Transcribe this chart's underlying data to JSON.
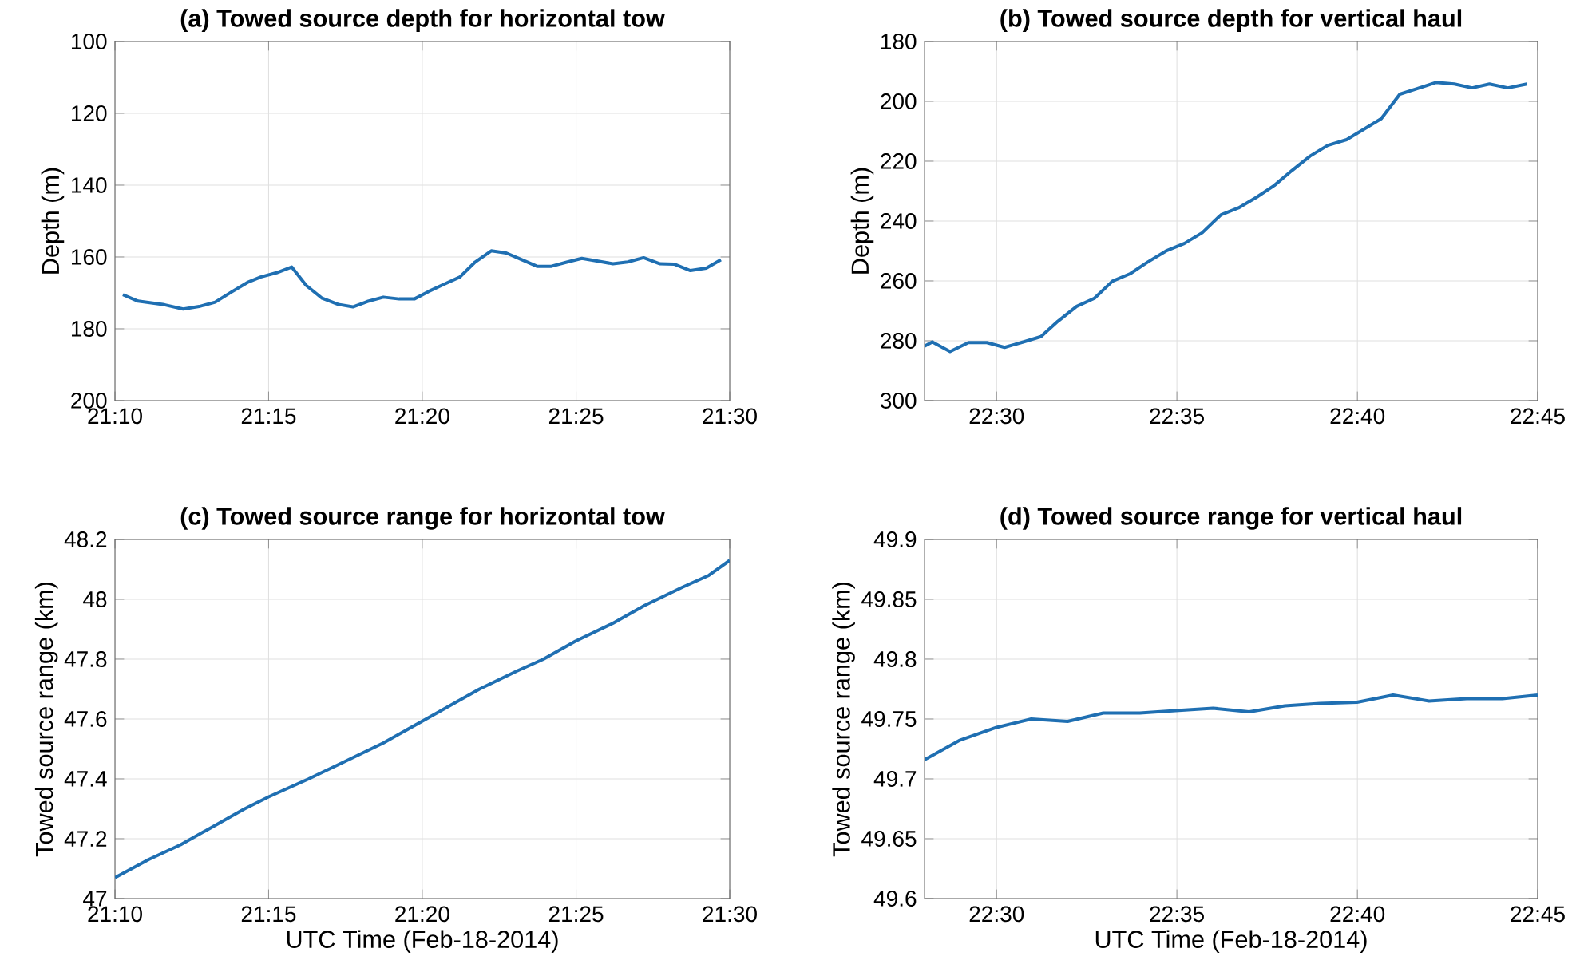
{
  "chart_data": [
    {
      "type": "line",
      "title": "(a) Towed source depth for horizontal tow",
      "ylabel": "Depth (m)",
      "grid": true,
      "x": [
        21.171,
        21.1792,
        21.1935,
        21.2037,
        21.2123,
        21.221,
        21.2297,
        21.2385,
        21.2457,
        21.2543,
        21.2625,
        21.2703,
        21.279,
        21.2877,
        21.2957,
        21.3035,
        21.3122,
        21.3208,
        21.329,
        21.3368,
        21.3455,
        21.3537,
        21.362,
        21.3707,
        21.3788,
        21.3875,
        21.3955,
        21.4033,
        21.412,
        21.4198,
        21.428,
        21.4367,
        21.4447,
        21.4533,
        21.4622,
        21.4698,
        21.4787,
        21.4873,
        21.4952
      ],
      "series": [
        {
          "color": "#1f6fb2",
          "values": [
            170.5,
            172.3,
            173.3,
            174.5,
            173.8,
            172.6,
            169.8,
            167.1,
            165.6,
            164.4,
            162.8,
            167.9,
            171.5,
            173.2,
            173.9,
            172.4,
            171.2,
            171.7,
            171.7,
            169.6,
            167.5,
            165.6,
            161.4,
            158.3,
            158.9,
            160.8,
            162.6,
            162.6,
            161.4,
            160.4,
            161.1,
            161.9,
            161.4,
            160.2,
            161.9,
            162.0,
            163.8,
            163.1,
            160.8
          ]
        }
      ],
      "xlim": [
        21.1667,
        21.5
      ],
      "ylim": [
        200,
        100
      ],
      "xticks": [
        {
          "value": 21.1667,
          "label": "21:10"
        },
        {
          "value": 21.25,
          "label": "21:15"
        },
        {
          "value": 21.3333,
          "label": "21:20"
        },
        {
          "value": 21.4167,
          "label": "21:25"
        },
        {
          "value": 21.5,
          "label": "21:30"
        }
      ],
      "yticks": [
        100,
        120,
        140,
        160,
        180,
        200
      ]
    },
    {
      "type": "line",
      "title": "(b) Towed source depth for vertical haul",
      "ylabel": "Depth (m)",
      "grid": true,
      "x": [
        22.4667,
        22.4703,
        22.4785,
        22.487,
        22.4955,
        22.5037,
        22.5123,
        22.5205,
        22.5283,
        22.537,
        22.5452,
        22.5535,
        22.5617,
        22.5698,
        22.5783,
        22.5867,
        22.595,
        22.6037,
        22.6118,
        22.6202,
        22.6283,
        22.6365,
        22.6448,
        22.653,
        22.6617,
        22.6695,
        22.6777,
        22.6863,
        22.6945,
        22.703,
        22.7115,
        22.7197,
        22.7277,
        22.7362,
        22.745
      ],
      "series": [
        {
          "color": "#1f6fb2",
          "values": [
            281.8,
            280.4,
            283.6,
            280.6,
            280.6,
            282.2,
            280.4,
            278.6,
            273.5,
            268.5,
            265.8,
            260.1,
            257.6,
            253.7,
            250.0,
            247.5,
            243.9,
            237.9,
            235.6,
            232.0,
            228.1,
            223.1,
            218.3,
            214.7,
            212.8,
            209.4,
            205.8,
            197.6,
            195.7,
            193.7,
            194.2,
            195.5,
            194.2,
            195.5,
            194.2
          ]
        }
      ],
      "xlim": [
        22.4667,
        22.75
      ],
      "ylim": [
        300,
        180
      ],
      "xticks": [
        {
          "value": 22.5,
          "label": "22:30"
        },
        {
          "value": 22.5833,
          "label": "22:35"
        },
        {
          "value": 22.6667,
          "label": "22:40"
        },
        {
          "value": 22.75,
          "label": "22:45"
        }
      ],
      "yticks": [
        180,
        200,
        220,
        240,
        260,
        280,
        300
      ]
    },
    {
      "type": "line",
      "title": "(c) Towed source range for horizontal tow",
      "xlabel": "UTC Time (Feb-18-2014)",
      "ylabel": "Towed source range (km)",
      "grid": true,
      "x": [
        21.1667,
        21.1848,
        21.2023,
        21.2197,
        21.237,
        21.25,
        21.2717,
        21.292,
        21.3122,
        21.3325,
        21.3527,
        21.3643,
        21.3845,
        21.399,
        21.4163,
        21.4367,
        21.454,
        21.4742,
        21.4887,
        21.5
      ],
      "series": [
        {
          "color": "#1f6fb2",
          "values": [
            47.07,
            47.13,
            47.18,
            47.24,
            47.3,
            47.34,
            47.4,
            47.46,
            47.52,
            47.59,
            47.66,
            47.7,
            47.76,
            47.8,
            47.86,
            47.92,
            47.98,
            48.04,
            48.08,
            48.13
          ]
        }
      ],
      "xlim": [
        21.1667,
        21.5
      ],
      "ylim": [
        47,
        48.2
      ],
      "xticks": [
        {
          "value": 21.1667,
          "label": "21:10"
        },
        {
          "value": 21.25,
          "label": "21:15"
        },
        {
          "value": 21.3333,
          "label": "21:20"
        },
        {
          "value": 21.4167,
          "label": "21:25"
        },
        {
          "value": 21.5,
          "label": "21:30"
        }
      ],
      "yticks": [
        47,
        47.2,
        47.4,
        47.6,
        47.8,
        48,
        48.2
      ]
    },
    {
      "type": "line",
      "title": "(d) Towed source range for vertical haul",
      "xlabel": "UTC Time (Feb-18-2014)",
      "ylabel": "Towed source range (km)",
      "grid": true,
      "x": [
        22.4667,
        22.4827,
        22.5,
        22.516,
        22.5328,
        22.5493,
        22.5662,
        22.5827,
        22.6,
        22.6167,
        22.6332,
        22.6493,
        22.6665,
        22.6832,
        22.6998,
        22.7172,
        22.7337,
        22.75
      ],
      "series": [
        {
          "color": "#1f6fb2",
          "values": [
            49.716,
            49.732,
            49.743,
            49.75,
            49.748,
            49.755,
            49.755,
            49.757,
            49.759,
            49.756,
            49.761,
            49.763,
            49.764,
            49.77,
            49.765,
            49.767,
            49.767,
            49.77
          ]
        }
      ],
      "xlim": [
        22.4667,
        22.75
      ],
      "ylim": [
        49.6,
        49.9
      ],
      "xticks": [
        {
          "value": 22.5,
          "label": "22:30"
        },
        {
          "value": 22.5833,
          "label": "22:35"
        },
        {
          "value": 22.6667,
          "label": "22:40"
        },
        {
          "value": 22.75,
          "label": "22:45"
        }
      ],
      "yticks": [
        49.6,
        49.65,
        49.7,
        49.75,
        49.8,
        49.85,
        49.9
      ]
    }
  ]
}
